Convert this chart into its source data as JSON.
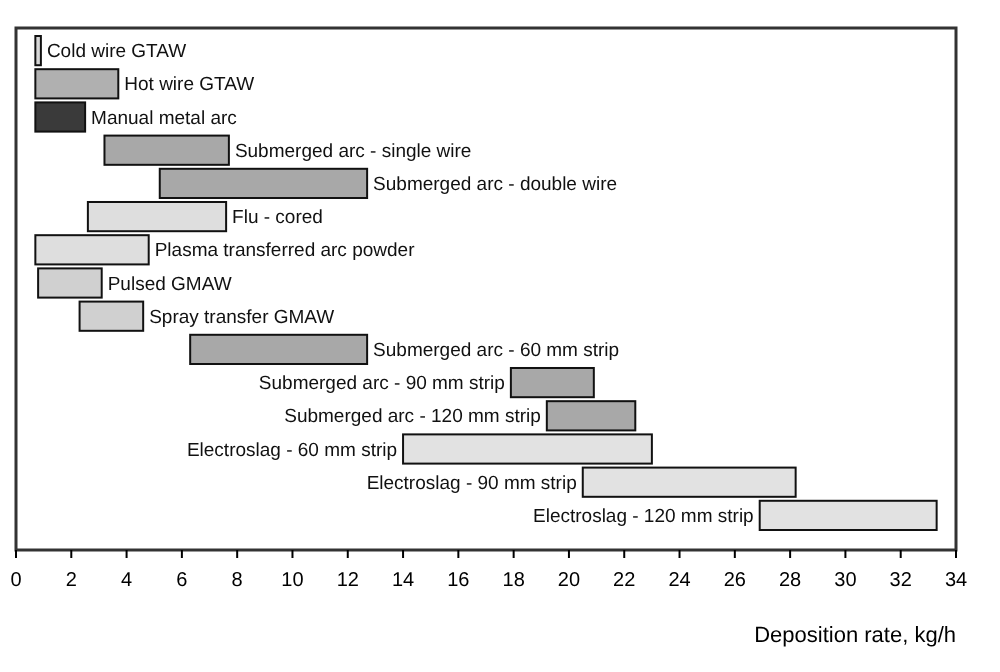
{
  "chart_data": {
    "type": "bar",
    "orientation": "horizontal",
    "xlabel": "Deposition rate, kg/h",
    "categories": [
      "Cold wire GTAW",
      "Hot wire GTAW",
      "Manual metal arc",
      "Submerged arc - single wire",
      "Submerged arc - double wire",
      "Flu - cored",
      "Plasma transferred arc powder",
      "Pulsed GMAW",
      "Spray transfer GMAW",
      "Submerged arc - 60 mm strip",
      "Submerged arc - 90  mm strip",
      "Submerged arc  - 120 mm strip",
      "Electroslag - 60 mm strip",
      "Electroslag - 90 mm strip",
      "Electroslag - 120 mm strip"
    ],
    "base": [
      0.7,
      0.7,
      0.7,
      3.2,
      5.2,
      2.6,
      0.7,
      0.8,
      2.3,
      6.3,
      17.9,
      19.2,
      14.0,
      20.5,
      26.9
    ],
    "values": [
      0.2,
      3.0,
      1.8,
      4.5,
      7.5,
      5.0,
      4.1,
      2.3,
      2.3,
      6.4,
      3.0,
      3.2,
      9.0,
      7.7,
      6.4
    ],
    "colors": [
      "#d8d8d8",
      "#b0b0b0",
      "#3a3a3a",
      "#a8a8a8",
      "#a8a8a8",
      "#dedede",
      "#dedede",
      "#d0d0d0",
      "#d0d0d0",
      "#a8a8a8",
      "#a8a8a8",
      "#a8a8a8",
      "#e2e2e2",
      "#e2e2e2",
      "#e2e2e2"
    ],
    "xlim": [
      0,
      34
    ],
    "xticks": [
      0,
      2,
      4,
      6,
      8,
      10,
      12,
      14,
      16,
      18,
      20,
      22,
      24,
      26,
      28,
      30,
      32,
      34
    ],
    "tick_labels": "x",
    "grid": false
  }
}
